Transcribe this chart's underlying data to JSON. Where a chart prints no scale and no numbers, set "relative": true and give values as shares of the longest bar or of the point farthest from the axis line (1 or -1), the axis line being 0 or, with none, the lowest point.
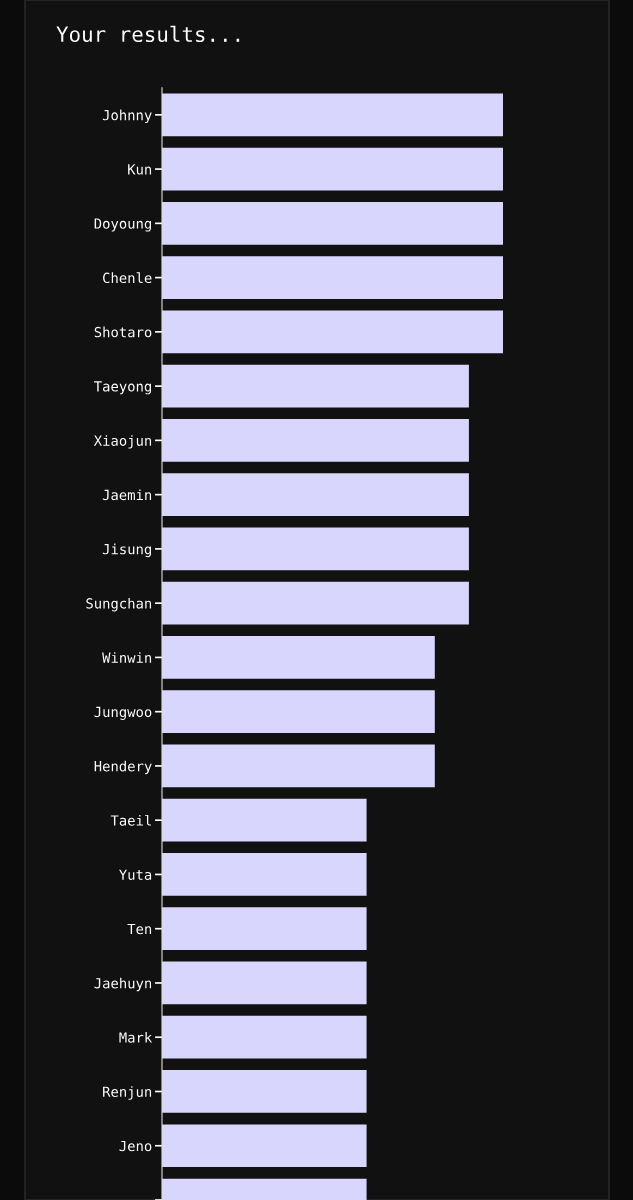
{
  "chart_data": {
    "type": "bar",
    "orientation": "horizontal",
    "relative": true,
    "title": "Your results...",
    "categories": [
      "Johnny",
      "Kun",
      "Doyoung",
      "Chenle",
      "Shotaro",
      "Taeyong",
      "Xiaojun",
      "Jaemin",
      "Jisung",
      "Sungchan",
      "Winwin",
      "Jungwoo",
      "Hendery",
      "Taeil",
      "Yuta",
      "Ten",
      "Jaehuyn",
      "Mark",
      "Renjun",
      "Jeno",
      null
    ],
    "values": [
      1,
      1,
      1,
      1,
      1,
      0.9,
      0.9,
      0.9,
      0.9,
      0.9,
      0.8,
      0.8,
      0.8,
      0.6,
      0.6,
      0.6,
      0.6,
      0.6,
      0.6,
      0.6,
      0.6
    ],
    "color": "#d9d6fe"
  }
}
